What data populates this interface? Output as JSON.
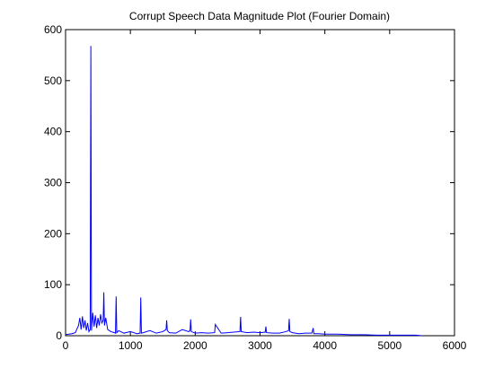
{
  "chart_data": {
    "type": "line",
    "title": "Corrupt Speech Data Magnitude Plot (Fourier Domain)",
    "x": [
      0,
      50,
      100,
      150,
      200,
      220,
      240,
      260,
      280,
      300,
      320,
      340,
      360,
      380,
      390,
      400,
      420,
      440,
      460,
      480,
      500,
      520,
      540,
      560,
      580,
      590,
      600,
      620,
      650,
      700,
      750,
      770,
      780,
      790,
      820,
      900,
      1000,
      1100,
      1150,
      1160,
      1170,
      1200,
      1300,
      1400,
      1500,
      1550,
      1560,
      1570,
      1600,
      1700,
      1800,
      1900,
      1920,
      1930,
      1940,
      2000,
      2100,
      2200,
      2300,
      2310,
      2400,
      2500,
      2600,
      2690,
      2700,
      2710,
      2800,
      2900,
      3000,
      3080,
      3090,
      3100,
      3200,
      3300,
      3400,
      3440,
      3450,
      3460,
      3500,
      3600,
      3700,
      3800,
      3820,
      3830,
      3900,
      4000,
      4200,
      4400,
      4600,
      4800,
      5000,
      5200,
      5400,
      5500
    ],
    "values": [
      2,
      3,
      4,
      6,
      20,
      35,
      12,
      38,
      15,
      30,
      10,
      25,
      8,
      12,
      568,
      10,
      45,
      18,
      40,
      15,
      35,
      20,
      42,
      25,
      30,
      85,
      20,
      35,
      12,
      8,
      6,
      5,
      77,
      6,
      10,
      5,
      8,
      4,
      5,
      75,
      5,
      6,
      10,
      5,
      8,
      12,
      30,
      10,
      6,
      5,
      12,
      8,
      10,
      32,
      8,
      5,
      6,
      5,
      6,
      22,
      5,
      6,
      7,
      8,
      37,
      8,
      6,
      7,
      6,
      7,
      18,
      6,
      5,
      5,
      8,
      10,
      33,
      8,
      6,
      4,
      5,
      5,
      15,
      4,
      4,
      3,
      3,
      2,
      2,
      1,
      1,
      1,
      1,
      0
    ],
    "color": "#0000ff",
    "xlim": [
      0,
      6000
    ],
    "xticks": [
      0,
      1000,
      2000,
      3000,
      4000,
      5000,
      6000
    ],
    "ylim": [
      0,
      600
    ],
    "yticks": [
      0,
      100,
      200,
      300,
      400,
      500,
      600
    ]
  }
}
